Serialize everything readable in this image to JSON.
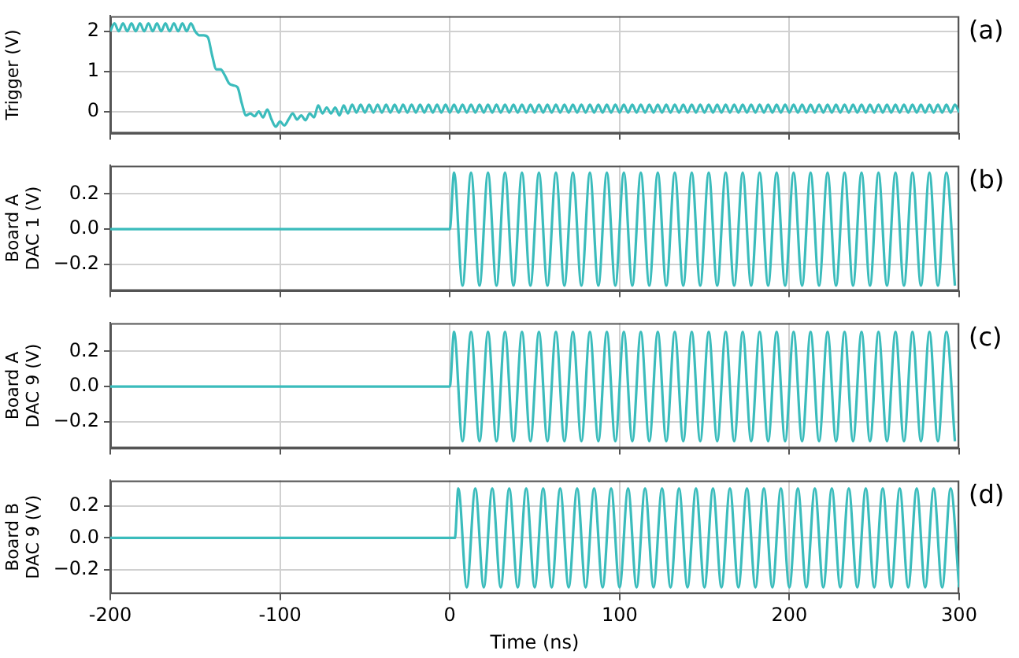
{
  "chart_data": [
    {
      "type": "line",
      "ylabel": "Trigger (V)",
      "annotations": [
        "(a)"
      ],
      "xlim": [
        -200,
        300
      ],
      "xticks": [
        -200,
        -100,
        0,
        100,
        200,
        300
      ],
      "ylim": [
        -0.55,
        2.38
      ],
      "yticks": [
        0,
        1,
        2
      ],
      "grid": true,
      "tick_labels": "y",
      "series": [
        {
          "color": "#3bbcbc",
          "x": [
            -200,
            -197.5,
            -195,
            -192.5,
            -190,
            -187.5,
            -185,
            -182.5,
            -180,
            -177.5,
            -175,
            -172.5,
            -170,
            -167.5,
            -165,
            -162.5,
            -160,
            -157.5,
            -155,
            -152.5,
            -150,
            -147.5,
            -145,
            -142.5,
            -140,
            -137.5,
            -135,
            -132.5,
            -130,
            -127.5,
            -125,
            -122.5,
            -120,
            -117.5,
            -115,
            -112.5,
            -110,
            -107.5,
            -105,
            -102.5,
            -100,
            -97.5,
            -95,
            -92.5,
            -90,
            -87.5,
            -85,
            -82.5,
            -80,
            -77.5,
            -75,
            -72.5,
            -70,
            -67.5,
            -65,
            -62.5,
            -60,
            -57.5,
            -55,
            -52.5,
            -50,
            -47.5,
            -45,
            -42.5,
            -40,
            -37.5,
            -35,
            -32.5,
            -30,
            -27.5,
            -25,
            -22.5,
            -20,
            -17.5,
            -15,
            -12.5,
            -10,
            -7.5,
            -5,
            -2.5,
            0,
            2.5,
            5,
            7.5,
            10,
            12.5,
            15,
            17.5,
            20,
            22.5,
            25,
            27.5,
            30,
            32.5,
            35,
            37.5,
            40,
            42.5,
            45,
            47.5,
            50,
            52.5,
            55,
            57.5,
            60,
            62.5,
            65,
            67.5,
            70,
            72.5,
            75,
            77.5,
            80,
            82.5,
            85,
            87.5,
            90,
            92.5,
            95,
            97.5,
            100,
            102.5,
            105,
            107.5,
            110,
            112.5,
            115,
            117.5,
            120,
            122.5,
            125,
            127.5,
            130,
            132.5,
            135,
            137.5,
            140,
            142.5,
            145,
            147.5,
            150,
            152.5,
            155,
            157.5,
            160,
            162.5,
            165,
            167.5,
            170,
            172.5,
            175,
            177.5,
            180,
            182.5,
            185,
            187.5,
            190,
            192.5,
            195,
            197.5,
            200,
            202.5,
            205,
            207.5,
            210,
            212.5,
            215,
            217.5,
            220,
            222.5,
            225,
            227.5,
            230,
            232.5,
            235,
            237.5,
            240,
            242.5,
            245,
            247.5,
            250,
            252.5,
            255,
            257.5,
            260,
            262.5,
            265,
            267.5,
            270,
            272.5,
            275,
            277.5,
            280,
            282.5,
            285,
            287.5,
            290,
            292.5,
            295,
            297.5,
            300
          ],
          "values": [
            2.0,
            2.2,
            2.0,
            2.2,
            2.0,
            2.2,
            2.0,
            2.2,
            2.0,
            2.2,
            2.0,
            2.2,
            2.0,
            2.2,
            2.0,
            2.2,
            2.0,
            2.2,
            2.0,
            2.2,
            2.0,
            1.9,
            1.9,
            1.85,
            1.4,
            1.05,
            1.05,
            0.9,
            0.7,
            0.65,
            0.6,
            0.2,
            -0.1,
            -0.05,
            -0.12,
            0.0,
            -0.15,
            0.05,
            -0.2,
            -0.38,
            -0.25,
            -0.35,
            -0.2,
            -0.05,
            -0.2,
            -0.1,
            -0.22,
            -0.05,
            -0.15,
            0.15,
            -0.05,
            0.1,
            -0.05,
            0.1,
            -0.1,
            0.15,
            -0.05,
            0.17,
            -0.03,
            0.17,
            -0.03,
            0.17,
            -0.03,
            0.17,
            -0.03,
            0.17,
            -0.03,
            0.17,
            -0.03,
            0.17,
            -0.03,
            0.17,
            -0.03,
            0.17,
            -0.03,
            0.17,
            -0.03,
            0.17,
            -0.03,
            0.17,
            -0.03,
            0.17,
            -0.03,
            0.17,
            -0.03,
            0.17,
            -0.03,
            0.17,
            -0.03,
            0.17,
            -0.03,
            0.17,
            -0.03,
            0.17,
            -0.03,
            0.17,
            -0.03,
            0.17,
            -0.03,
            0.17,
            -0.03,
            0.17,
            -0.03,
            0.17,
            -0.03,
            0.17,
            -0.03,
            0.17,
            -0.03,
            0.17,
            -0.03,
            0.17,
            -0.03,
            0.17,
            -0.03,
            0.17,
            -0.03,
            0.17,
            -0.03,
            0.17,
            -0.03,
            0.17,
            -0.03,
            0.17,
            -0.03,
            0.17,
            -0.03,
            0.17,
            -0.03,
            0.17,
            -0.03,
            0.17,
            -0.03,
            0.17,
            -0.03,
            0.17,
            -0.03,
            0.17,
            -0.03,
            0.17,
            -0.03,
            0.17,
            -0.03,
            0.17,
            -0.03,
            0.17,
            -0.03,
            0.17,
            -0.03,
            0.17,
            -0.03,
            0.17,
            -0.03,
            0.17,
            -0.03,
            0.17,
            -0.03,
            0.17,
            -0.03,
            0.17,
            -0.03,
            0.17,
            -0.03,
            0.17,
            -0.03,
            0.17,
            -0.03,
            0.17,
            -0.03,
            0.17,
            -0.03,
            0.17,
            -0.03,
            0.17,
            -0.03,
            0.17,
            -0.03,
            0.17,
            -0.03,
            0.17,
            -0.03,
            0.17,
            -0.03,
            0.17,
            -0.03,
            0.17,
            -0.03,
            0.17,
            -0.03,
            0.17,
            -0.03,
            0.17,
            -0.03,
            0.17,
            -0.03,
            0.17,
            -0.03,
            0.17,
            -0.03,
            0.17,
            -0.03
          ]
        }
      ]
    },
    {
      "type": "line",
      "ylabel": "Board A\nDAC 1 (V)",
      "annotations": [
        "(b)"
      ],
      "xlim": [
        -200,
        300
      ],
      "xticks": [
        -200,
        -100,
        0,
        100,
        200,
        300
      ],
      "ylim": [
        -0.35,
        0.36
      ],
      "yticks": [
        {
          "value": -0.2,
          "label": "−0.2"
        },
        {
          "value": 0,
          "label": "0.0"
        },
        {
          "value": 0.2,
          "label": "0.2"
        }
      ],
      "grid": true,
      "tick_labels": "y",
      "series": [
        {
          "color": "#3bbcbc",
          "x": [
            -200,
            0,
            2.5,
            7.5,
            12.5,
            17.5,
            22.5,
            27.5,
            32.5,
            37.5,
            42.5,
            47.5,
            52.5,
            57.5,
            62.5,
            67.5,
            72.5,
            77.5,
            82.5,
            87.5,
            92.5,
            97.5,
            102.5,
            107.5,
            112.5,
            117.5,
            122.5,
            127.5,
            132.5,
            137.5,
            142.5,
            147.5,
            152.5,
            157.5,
            162.5,
            167.5,
            172.5,
            177.5,
            182.5,
            187.5,
            192.5,
            197.5,
            202.5,
            207.5,
            212.5,
            217.5,
            222.5,
            227.5,
            232.5,
            237.5,
            242.5,
            247.5,
            252.5,
            257.5,
            262.5,
            267.5,
            272.5,
            277.5,
            282.5,
            287.5,
            292.5,
            297.5
          ],
          "values": [
            0,
            0,
            0.32,
            -0.32,
            0.32,
            -0.32,
            0.32,
            -0.32,
            0.32,
            -0.32,
            0.32,
            -0.32,
            0.32,
            -0.32,
            0.32,
            -0.32,
            0.32,
            -0.32,
            0.32,
            -0.32,
            0.32,
            -0.32,
            0.32,
            -0.32,
            0.32,
            -0.32,
            0.32,
            -0.32,
            0.32,
            -0.32,
            0.32,
            -0.32,
            0.32,
            -0.32,
            0.32,
            -0.32,
            0.32,
            -0.32,
            0.32,
            -0.32,
            0.32,
            -0.32,
            0.32,
            -0.32,
            0.32,
            -0.32,
            0.32,
            -0.32,
            0.32,
            -0.32,
            0.32,
            -0.32,
            0.32,
            -0.32,
            0.32,
            -0.32,
            0.32,
            -0.32,
            0.32,
            -0.32,
            0.32,
            -0.32
          ]
        }
      ]
    },
    {
      "type": "line",
      "ylabel": "Board A\nDAC 9 (V)",
      "annotations": [
        "(c)"
      ],
      "xlim": [
        -200,
        300
      ],
      "xticks": [
        -200,
        -100,
        0,
        100,
        200,
        300
      ],
      "ylim": [
        -0.35,
        0.36
      ],
      "yticks": [
        {
          "value": -0.2,
          "label": "−0.2"
        },
        {
          "value": 0,
          "label": "0.0"
        },
        {
          "value": 0.2,
          "label": "0.2"
        }
      ],
      "grid": true,
      "tick_labels": "y",
      "series": [
        {
          "color": "#3bbcbc",
          "x": [
            -200,
            0,
            2.5,
            7.5,
            12.5,
            17.5,
            22.5,
            27.5,
            32.5,
            37.5,
            42.5,
            47.5,
            52.5,
            57.5,
            62.5,
            67.5,
            72.5,
            77.5,
            82.5,
            87.5,
            92.5,
            97.5,
            102.5,
            107.5,
            112.5,
            117.5,
            122.5,
            127.5,
            132.5,
            137.5,
            142.5,
            147.5,
            152.5,
            157.5,
            162.5,
            167.5,
            172.5,
            177.5,
            182.5,
            187.5,
            192.5,
            197.5,
            202.5,
            207.5,
            212.5,
            217.5,
            222.5,
            227.5,
            232.5,
            237.5,
            242.5,
            247.5,
            252.5,
            257.5,
            262.5,
            267.5,
            272.5,
            277.5,
            282.5,
            287.5,
            292.5,
            297.5
          ],
          "values": [
            0,
            0,
            0.31,
            -0.31,
            0.31,
            -0.31,
            0.31,
            -0.31,
            0.31,
            -0.31,
            0.31,
            -0.31,
            0.31,
            -0.31,
            0.31,
            -0.31,
            0.31,
            -0.31,
            0.31,
            -0.31,
            0.31,
            -0.31,
            0.31,
            -0.31,
            0.31,
            -0.31,
            0.31,
            -0.31,
            0.31,
            -0.31,
            0.31,
            -0.31,
            0.31,
            -0.31,
            0.31,
            -0.31,
            0.31,
            -0.31,
            0.31,
            -0.31,
            0.31,
            -0.31,
            0.31,
            -0.31,
            0.31,
            -0.31,
            0.31,
            -0.31,
            0.31,
            -0.31,
            0.31,
            -0.31,
            0.31,
            -0.31,
            0.31,
            -0.31,
            0.31,
            -0.31,
            0.31,
            -0.31,
            0.31,
            -0.31
          ]
        }
      ]
    },
    {
      "type": "line",
      "xlabel": "Time (ns)",
      "ylabel": "Board B\nDAC 9 (V)",
      "annotations": [
        "(d)"
      ],
      "xlim": [
        -200,
        300
      ],
      "xticks": [
        -200,
        -100,
        0,
        100,
        200,
        300
      ],
      "ylim": [
        -0.35,
        0.36
      ],
      "yticks": [
        {
          "value": -0.2,
          "label": "−0.2"
        },
        {
          "value": 0,
          "label": "0.0"
        },
        {
          "value": 0.2,
          "label": "0.2"
        }
      ],
      "grid": true,
      "series": [
        {
          "color": "#3bbcbc",
          "x": [
            -200,
            3,
            5,
            10,
            15,
            20,
            25,
            30,
            35,
            40,
            45,
            50,
            55,
            60,
            65,
            70,
            75,
            80,
            85,
            90,
            95,
            100,
            105,
            110,
            115,
            120,
            125,
            130,
            135,
            140,
            145,
            150,
            155,
            160,
            165,
            170,
            175,
            180,
            185,
            190,
            195,
            200,
            205,
            210,
            215,
            220,
            225,
            230,
            235,
            240,
            245,
            250,
            255,
            260,
            265,
            270,
            275,
            280,
            285,
            290,
            295,
            300
          ],
          "values": [
            0,
            0,
            0.31,
            -0.31,
            0.31,
            -0.31,
            0.31,
            -0.31,
            0.31,
            -0.31,
            0.31,
            -0.31,
            0.31,
            -0.31,
            0.31,
            -0.31,
            0.31,
            -0.31,
            0.31,
            -0.31,
            0.31,
            -0.31,
            0.31,
            -0.31,
            0.31,
            -0.31,
            0.31,
            -0.31,
            0.31,
            -0.31,
            0.31,
            -0.31,
            0.31,
            -0.31,
            0.31,
            -0.31,
            0.31,
            -0.31,
            0.31,
            -0.31,
            0.31,
            -0.31,
            0.31,
            -0.31,
            0.31,
            -0.31,
            0.31,
            -0.31,
            0.31,
            -0.31,
            0.31,
            -0.31,
            0.31,
            -0.31,
            0.31,
            -0.31,
            0.31,
            -0.31,
            0.31,
            -0.31,
            0.31,
            -0.31
          ]
        }
      ]
    }
  ]
}
